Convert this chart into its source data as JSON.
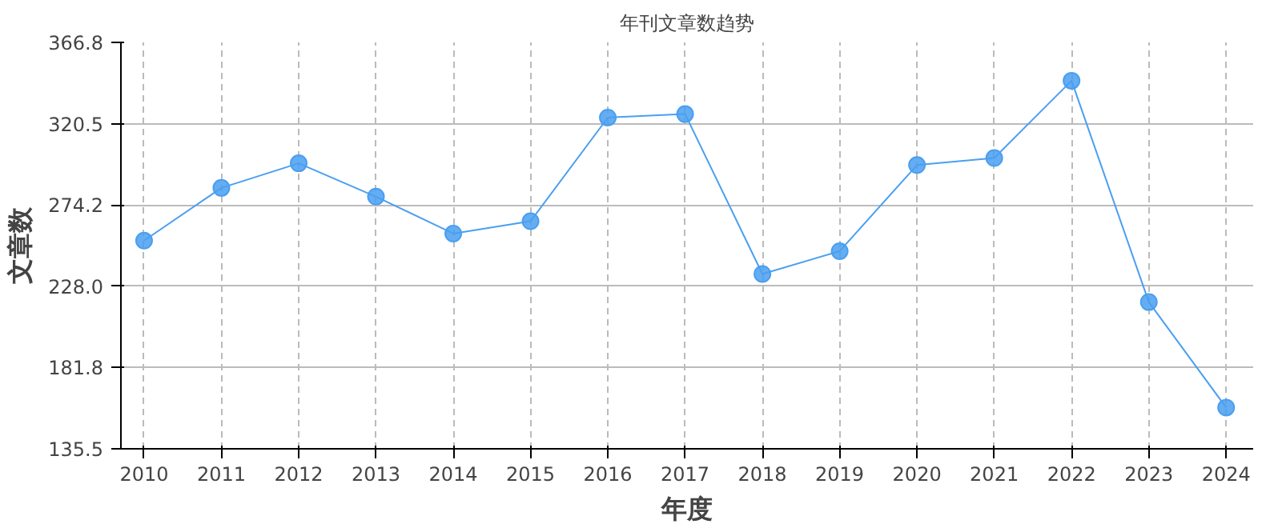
{
  "chart_data": {
    "type": "line",
    "title": "年刊文章数趋势",
    "xlabel": "年度",
    "ylabel": "文章数",
    "x": [
      2010,
      2011,
      2012,
      2013,
      2014,
      2015,
      2016,
      2017,
      2018,
      2019,
      2020,
      2021,
      2022,
      2023,
      2024
    ],
    "series": [
      {
        "color": "#4a9ff0",
        "values": [
          254,
          284,
          298,
          279,
          258,
          265,
          324,
          326,
          235,
          248,
          297,
          301,
          345,
          219,
          159
        ]
      }
    ],
    "xlim": [
      2009.7,
      2024.35
    ],
    "xticks": [
      2010,
      2011,
      2012,
      2013,
      2014,
      2015,
      2016,
      2017,
      2018,
      2019,
      2020,
      2021,
      2022,
      2023,
      2024
    ],
    "ylim": [
      135.5,
      366.8
    ],
    "yticks": [
      135.5,
      181.8,
      {
        "value": 228,
        "label": "228.0"
      },
      {
        "value": 274.2,
        "label": "274.2"
      },
      320.5,
      366.8
    ],
    "grid": true,
    "marker": "circle",
    "line_style": "solid"
  }
}
